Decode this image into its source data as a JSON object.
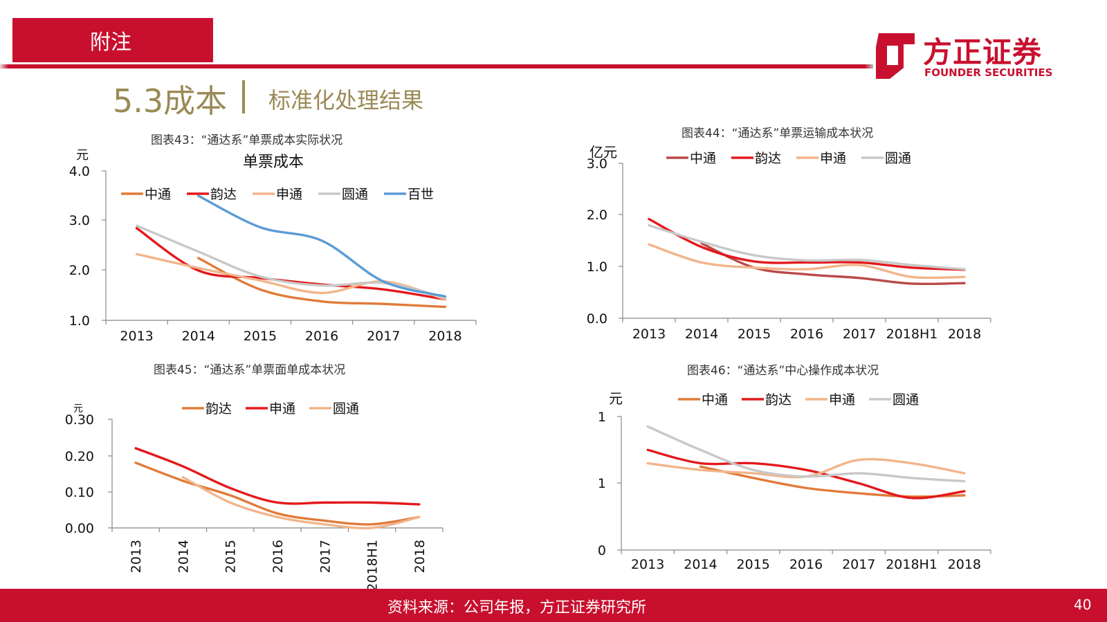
{
  "header": {
    "tag": "附注"
  },
  "logo": {
    "cn": "方正证券",
    "en": "FOUNDER SECURITIES"
  },
  "section": {
    "number": "5.3成本",
    "title": "标准化处理结果"
  },
  "footer": {
    "source": "资料来源：公司年报，方正证券研究所",
    "page": "40"
  },
  "colors": {
    "brand": "#c8102e",
    "section": "#9a8a55"
  },
  "chart_data": [
    {
      "type": "line",
      "title": "图表43：“通达系”单票成本实际状况",
      "inner_title": "单票成本",
      "ylabel": "元",
      "ylim": [
        1.0,
        4.0
      ],
      "yticks": [
        "4.0",
        "3.0",
        "2.0",
        "1.0"
      ],
      "categories": [
        "2013",
        "2014",
        "2015",
        "2016",
        "2017",
        "2018"
      ],
      "legend_placement": "top",
      "series": [
        {
          "name": "中通",
          "color": "#e07b39",
          "values": [
            null,
            2.25,
            1.62,
            1.38,
            1.33,
            1.27
          ]
        },
        {
          "name": "韵达",
          "color": "#e3191c",
          "values": [
            2.85,
            2.0,
            1.85,
            1.72,
            1.62,
            1.42
          ]
        },
        {
          "name": "申通",
          "color": "#f2b48a",
          "values": [
            2.33,
            2.05,
            1.8,
            1.55,
            1.78,
            1.42
          ]
        },
        {
          "name": "圆通",
          "color": "#c8c8c8",
          "values": [
            2.9,
            2.38,
            1.88,
            1.7,
            1.75,
            1.46
          ]
        },
        {
          "name": "百世",
          "color": "#5b9bd5",
          "values": [
            null,
            3.5,
            2.87,
            2.6,
            1.78,
            1.48
          ]
        }
      ]
    },
    {
      "type": "line",
      "title": "图表44：“通达系”单票运输成本状况",
      "ylabel": "亿元",
      "ylim": [
        0.0,
        3.0
      ],
      "yticks": [
        "3.0",
        "2.0",
        "1.0",
        "0.0"
      ],
      "categories": [
        "2013",
        "2014",
        "2015",
        "2016",
        "2017",
        "2018H1",
        "2018"
      ],
      "legend_placement": "top",
      "series": [
        {
          "name": "中通",
          "color": "#b94a48",
          "values": [
            null,
            1.45,
            0.98,
            0.85,
            0.78,
            0.67,
            0.68
          ]
        },
        {
          "name": "韵达",
          "color": "#e3191c",
          "values": [
            1.92,
            1.38,
            1.1,
            1.08,
            1.08,
            0.98,
            0.94
          ]
        },
        {
          "name": "申通",
          "color": "#f2b48a",
          "values": [
            1.43,
            1.08,
            0.98,
            0.95,
            1.03,
            0.8,
            0.8
          ]
        },
        {
          "name": "圆通",
          "color": "#c8c8c8",
          "values": [
            1.8,
            1.48,
            1.22,
            1.12,
            1.13,
            1.03,
            0.95
          ]
        }
      ]
    },
    {
      "type": "line",
      "title": "图表45：“通达系”单票面单成本状况",
      "ylabel": "元",
      "ylim": [
        0.0,
        0.3
      ],
      "yticks": [
        "0.30",
        "0.20",
        "0.10",
        "0.00"
      ],
      "categories": [
        "2013",
        "2014",
        "2015",
        "2016",
        "2017",
        "2018H1",
        "2018"
      ],
      "legend_placement": "top",
      "series": [
        {
          "name": "韵达",
          "color": "#e07b39",
          "values": [
            0.18,
            0.13,
            0.09,
            0.04,
            0.02,
            0.01,
            0.03
          ]
        },
        {
          "name": "申通",
          "color": "#e3191c",
          "values": [
            0.22,
            0.17,
            0.11,
            0.07,
            0.07,
            0.07,
            0.065
          ]
        },
        {
          "name": "圆通",
          "color": "#f2b48a",
          "values": [
            null,
            0.14,
            0.07,
            0.03,
            0.01,
            0.0,
            0.03
          ]
        }
      ]
    },
    {
      "type": "line",
      "title": "图表46：“通达系”中心操作成本状况",
      "ylabel": "元",
      "ylim": [
        0,
        2
      ],
      "yticks": [
        "1",
        "1",
        "0"
      ],
      "categories": [
        "2013",
        "2014",
        "2015",
        "2016",
        "2017",
        "2018H1",
        "2018"
      ],
      "legend_placement": "top",
      "series": [
        {
          "name": "中通",
          "color": "#e07b39",
          "values": [
            null,
            1.25,
            1.08,
            0.93,
            0.85,
            0.8,
            0.82
          ]
        },
        {
          "name": "韵达",
          "color": "#e3191c",
          "values": [
            1.5,
            1.3,
            1.3,
            1.2,
            1.0,
            0.78,
            0.88
          ]
        },
        {
          "name": "申通",
          "color": "#f2b48a",
          "values": [
            1.3,
            1.2,
            1.15,
            1.1,
            1.35,
            1.3,
            1.15
          ]
        },
        {
          "name": "圆通",
          "color": "#c8c8c8",
          "values": [
            1.85,
            1.5,
            1.2,
            1.1,
            1.15,
            1.08,
            1.03
          ]
        }
      ]
    }
  ]
}
